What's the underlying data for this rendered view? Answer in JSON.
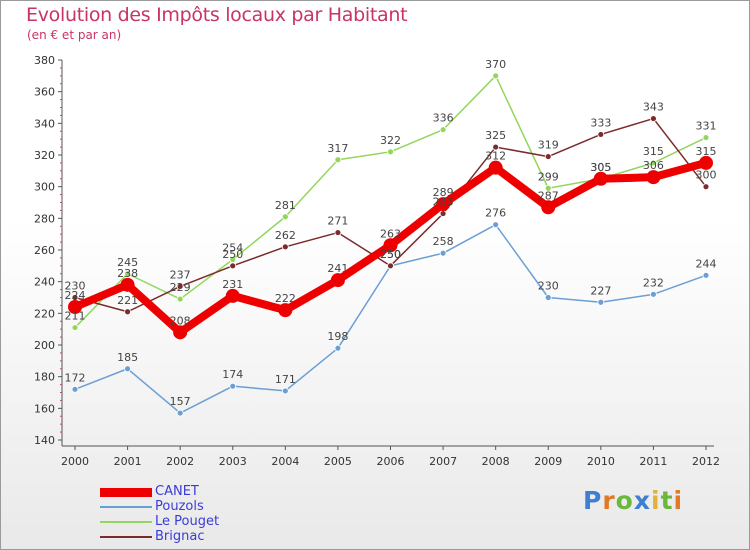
{
  "chart_data": {
    "type": "line",
    "title": "Evolution des Impôts locaux par Habitant",
    "subtitle": "(en € et par an)",
    "xlabel": "",
    "ylabel": "",
    "x": [
      "2000",
      "2001",
      "2002",
      "2003",
      "2004",
      "2005",
      "2006",
      "2007",
      "2008",
      "2009",
      "2010",
      "2011",
      "2012"
    ],
    "ylim": [
      140,
      380
    ],
    "yticks": [
      140,
      160,
      180,
      200,
      220,
      240,
      260,
      280,
      300,
      320,
      340,
      360,
      380
    ],
    "grid": false,
    "legend_position": "bottom-left",
    "series": [
      {
        "name": "CANET",
        "color": "#ee0000",
        "values": [
          224,
          238,
          208,
          231,
          222,
          241,
          263,
          289,
          312,
          287,
          305,
          306,
          315
        ]
      },
      {
        "name": "Pouzols",
        "color": "#6b9fd4",
        "values": [
          172,
          185,
          157,
          174,
          171,
          198,
          250,
          258,
          276,
          230,
          227,
          232,
          244
        ]
      },
      {
        "name": "Le Pouget",
        "color": "#93d65d",
        "values": [
          211,
          245,
          229,
          254,
          281,
          317,
          322,
          336,
          370,
          299,
          305,
          315,
          331
        ]
      },
      {
        "name": "Brignac",
        "color": "#7b2b2b",
        "values": [
          230,
          221,
          237,
          250,
          262,
          271,
          250,
          283,
          325,
          319,
          333,
          343,
          300
        ]
      }
    ]
  },
  "branding": {
    "logo_letters": [
      "P",
      "r",
      "o",
      "x",
      "i",
      "t",
      "i"
    ]
  }
}
